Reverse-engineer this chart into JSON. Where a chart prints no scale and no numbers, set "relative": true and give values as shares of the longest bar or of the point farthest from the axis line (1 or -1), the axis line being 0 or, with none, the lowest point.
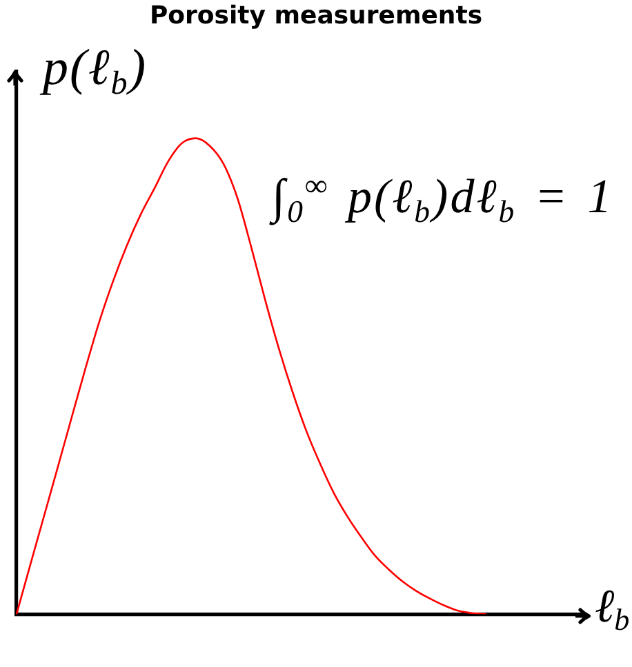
{
  "chart_data": {
    "type": "line",
    "title": "Porosity measurements",
    "xlabel": "ℓ$_{b}$",
    "ylabel": "p(ℓ$_{b}$)",
    "annotations": [
      "∫$_{0}$$^{∞}$ p(ℓ$_{b}$)dℓ$_{b}$ = 1"
    ],
    "categories": [
      null,
      null,
      null,
      null,
      null,
      null,
      null,
      null,
      null,
      null,
      null,
      null,
      null,
      null,
      null,
      null,
      null,
      null,
      null,
      null,
      null,
      null,
      null,
      null,
      null,
      null,
      null,
      null,
      null,
      null,
      null,
      null,
      null,
      null,
      null,
      null,
      null,
      null,
      null,
      null,
      null,
      null
    ],
    "series": [
      {
        "color": "#ff0000",
        "values": [
          0,
          0.104,
          0.207,
          0.31,
          0.414,
          0.517,
          0.615,
          0.7,
          0.775,
          0.84,
          0.895,
          0.952,
          0.99,
          1.0,
          0.984,
          0.946,
          0.875,
          0.772,
          0.662,
          0.559,
          0.467,
          0.385,
          0.316,
          0.254,
          0.204,
          0.161,
          0.122,
          0.093,
          0.068,
          0.048,
          0.032,
          0.018,
          0.007,
          0.002,
          0,
          null,
          null,
          null,
          null,
          null,
          null,
          null
        ]
      }
    ],
    "relative": true,
    "legend": false,
    "marker": "none",
    "line_style": "solid"
  }
}
